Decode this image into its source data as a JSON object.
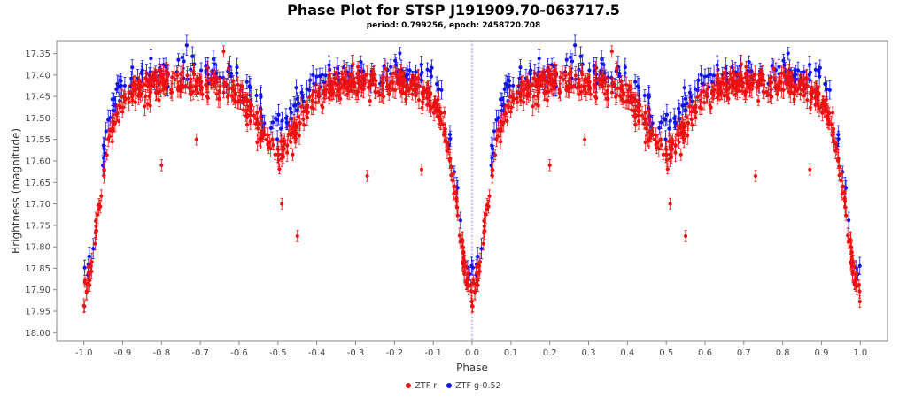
{
  "title": "Phase Plot for STSP J191909.70-063717.5",
  "subtitle": "period: 0.799256, epoch: 2458720.708",
  "chart_data": {
    "type": "scatter",
    "xlabel": "Phase",
    "ylabel": "Brightness (magnitude)",
    "xlim": [
      -1.07,
      1.07
    ],
    "ylim": [
      17.32,
      18.02
    ],
    "y_inverted": true,
    "xticks": [
      "-1.0",
      "-0.9",
      "-0.8",
      "-0.7",
      "-0.6",
      "-0.5",
      "-0.4",
      "-0.3",
      "-0.2",
      "-0.1",
      "0.0",
      "0.1",
      "0.2",
      "0.3",
      "0.4",
      "0.5",
      "0.6",
      "0.7",
      "0.8",
      "0.9",
      "1.0"
    ],
    "yticks": [
      "17.35",
      "17.40",
      "17.45",
      "17.50",
      "17.55",
      "17.60",
      "17.65",
      "17.70",
      "17.75",
      "17.80",
      "17.85",
      "17.90",
      "17.95",
      "18.00"
    ],
    "grid": false,
    "reference_line_x": 0.0,
    "legend_position": "bottom-center",
    "light_curve_template": {
      "phase": [
        0.0,
        0.02,
        0.04,
        0.06,
        0.08,
        0.1,
        0.12,
        0.15,
        0.2,
        0.25,
        0.3,
        0.35,
        0.4,
        0.44,
        0.47,
        0.5,
        0.53,
        0.56,
        0.6,
        0.65,
        0.7,
        0.75,
        0.8,
        0.85,
        0.88,
        0.9,
        0.92,
        0.94,
        0.96,
        0.98,
        1.0
      ],
      "r_mag": [
        17.92,
        17.85,
        17.7,
        17.57,
        17.5,
        17.46,
        17.44,
        17.43,
        17.42,
        17.42,
        17.42,
        17.43,
        17.45,
        17.5,
        17.55,
        17.58,
        17.55,
        17.5,
        17.45,
        17.43,
        17.42,
        17.42,
        17.42,
        17.43,
        17.44,
        17.46,
        17.5,
        17.57,
        17.7,
        17.85,
        17.92
      ],
      "g_offset_mag": [
        17.88,
        17.8,
        17.65,
        17.52,
        17.45,
        17.42,
        17.4,
        17.39,
        17.39,
        17.39,
        17.39,
        17.4,
        17.41,
        17.45,
        17.5,
        17.53,
        17.5,
        17.45,
        17.41,
        17.4,
        17.39,
        17.39,
        17.39,
        17.4,
        17.4,
        17.42,
        17.45,
        17.52,
        17.65,
        17.8,
        17.88
      ]
    },
    "points_per_cycle": {
      "r": 620,
      "g": 200
    },
    "outliers_r": [
      {
        "x": -0.45,
        "y": 17.775
      },
      {
        "x": 0.55,
        "y": 17.775
      },
      {
        "x": -0.8,
        "y": 17.61
      },
      {
        "x": 0.2,
        "y": 17.61
      },
      {
        "x": -0.71,
        "y": 17.55
      },
      {
        "x": 0.29,
        "y": 17.55
      },
      {
        "x": -0.27,
        "y": 17.635
      },
      {
        "x": 0.73,
        "y": 17.635
      },
      {
        "x": -0.13,
        "y": 17.62
      },
      {
        "x": 0.87,
        "y": 17.62
      },
      {
        "x": -0.49,
        "y": 17.7
      },
      {
        "x": 0.51,
        "y": 17.7
      },
      {
        "x": -0.64,
        "y": 17.345
      },
      {
        "x": 0.36,
        "y": 17.345
      }
    ],
    "series": [
      {
        "name": "ZTF r",
        "color": "#ee1111"
      },
      {
        "name": "ZTF g-0.52",
        "color": "#1111ee"
      }
    ]
  }
}
